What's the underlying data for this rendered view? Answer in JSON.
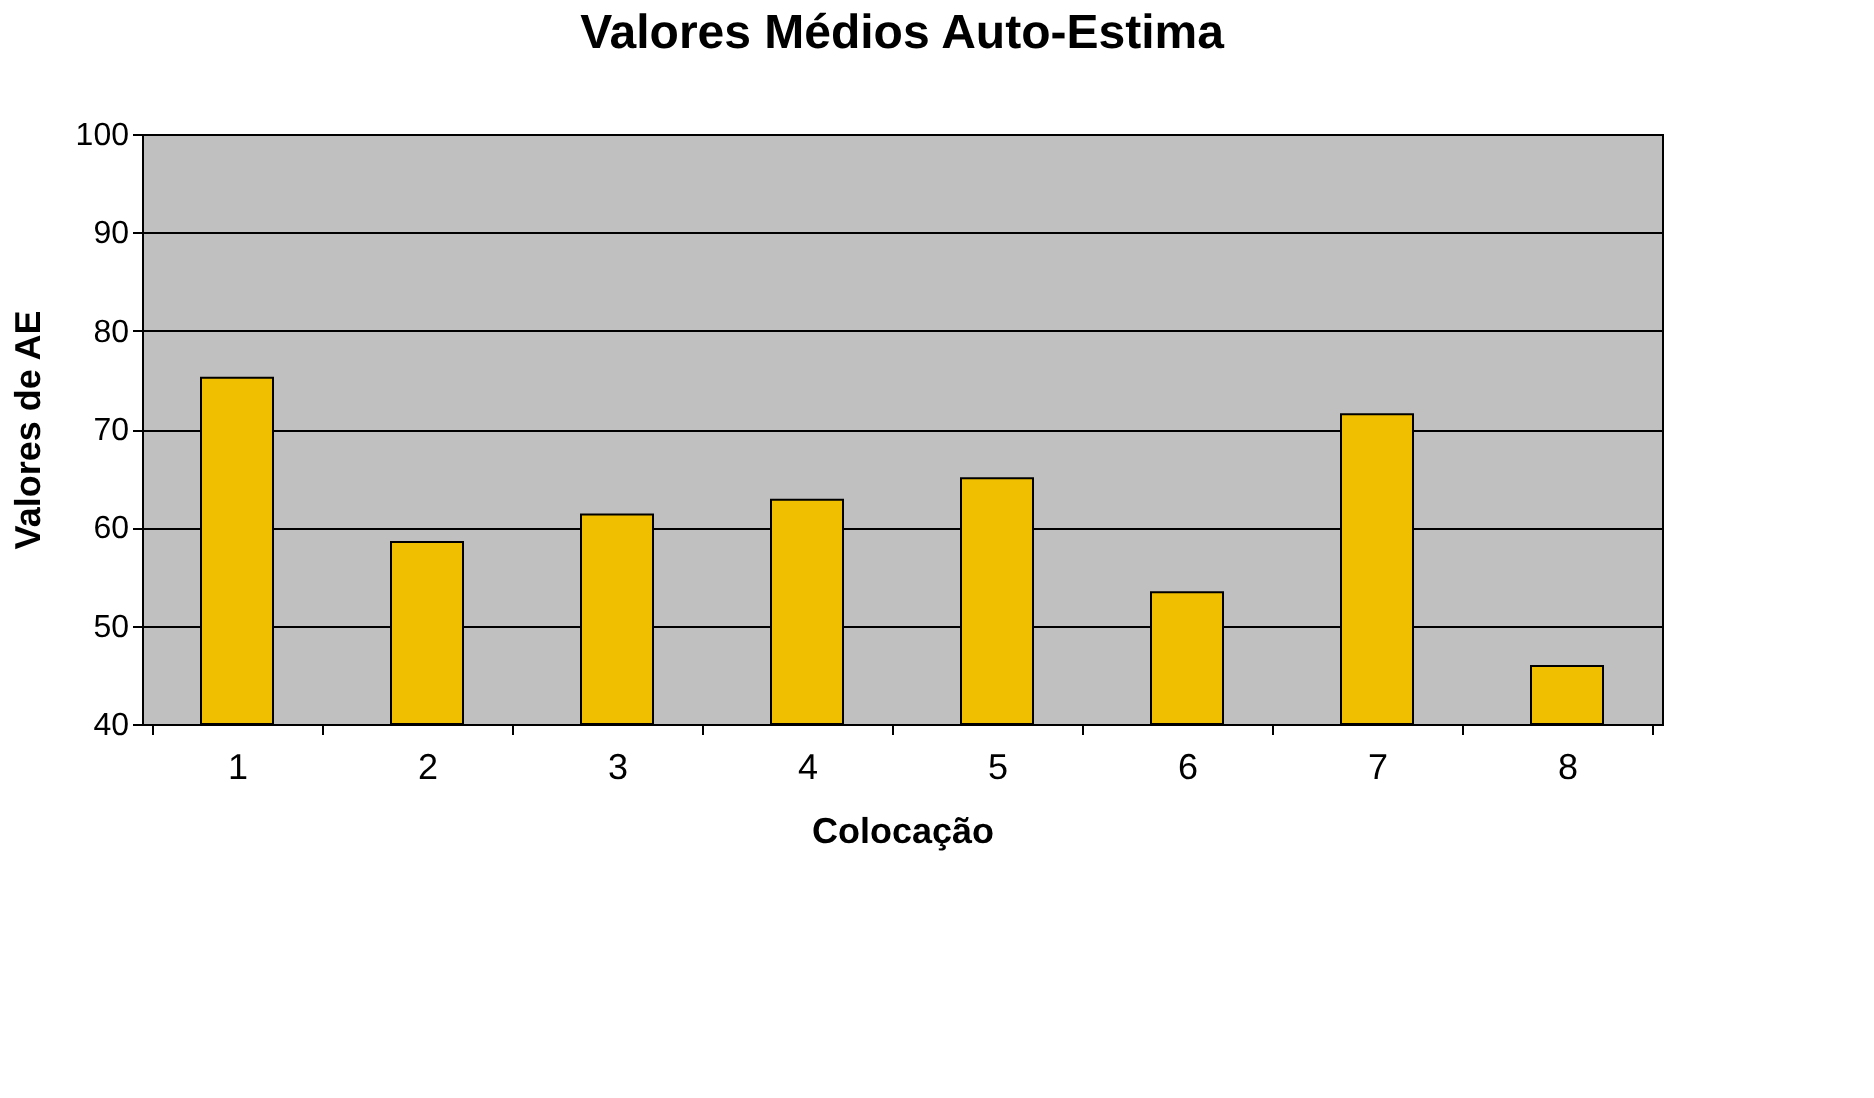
{
  "chart_data": {
    "type": "bar",
    "title": "Valores Médios Auto-Estima",
    "xlabel": "Colocação",
    "ylabel": "Valores de AE",
    "categories": [
      "1",
      "2",
      "3",
      "4",
      "5",
      "6",
      "7",
      "8"
    ],
    "values": [
      75.2,
      58.5,
      61.3,
      62.8,
      65.0,
      53.4,
      71.5,
      45.9
    ],
    "color": "#f0c000",
    "ylim": [
      40,
      100
    ],
    "yticks": [
      40,
      50,
      60,
      70,
      80,
      90,
      100
    ],
    "grid": "y"
  }
}
